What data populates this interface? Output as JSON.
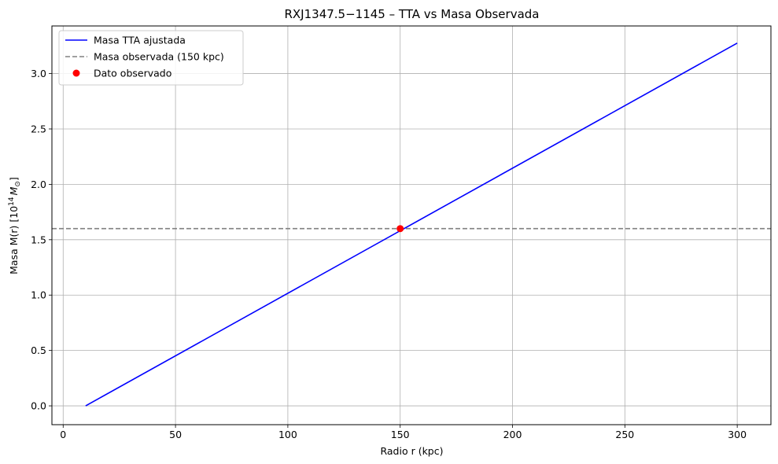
{
  "chart_data": {
    "type": "line",
    "title": "RXJ1347.5−1145 – TTA vs Masa Observada",
    "xlabel": "Radio r (kpc)",
    "ylabel_prefix": "Masa M(r) [10",
    "ylabel_exp": "14",
    "ylabel_unit": "M",
    "ylabel_sub": "⊙",
    "ylabel_suffix": "]",
    "xlim": [
      -5,
      315
    ],
    "ylim": [
      -0.17,
      3.43
    ],
    "xticks": [
      0,
      50,
      100,
      150,
      200,
      250,
      300
    ],
    "xtick_labels": [
      "0",
      "50",
      "100",
      "150",
      "200",
      "250",
      "300"
    ],
    "yticks": [
      0.0,
      0.5,
      1.0,
      1.5,
      2.0,
      2.5,
      3.0
    ],
    "ytick_labels": [
      "0.0",
      "0.5",
      "1.0",
      "1.5",
      "2.0",
      "2.5",
      "3.0"
    ],
    "grid": true,
    "legend_position": "top-left",
    "series": [
      {
        "name": "Masa TTA ajustada",
        "kind": "line",
        "color": "#0000ff",
        "style": "solid",
        "x": [
          10,
          300
        ],
        "y": [
          0.0,
          3.275
        ]
      },
      {
        "name": "Masa observada (150 kpc)",
        "kind": "hline",
        "color": "#808080",
        "style": "dashed",
        "y": 1.6
      },
      {
        "name": "Dato observado",
        "kind": "point",
        "color": "#ff0000",
        "x": [
          150
        ],
        "y": [
          1.6
        ]
      }
    ]
  }
}
